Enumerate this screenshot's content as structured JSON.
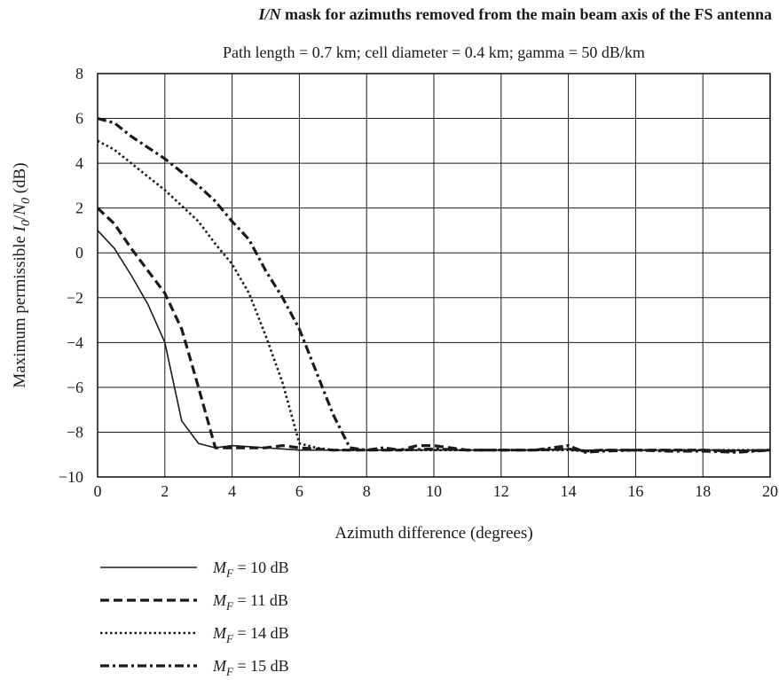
{
  "chart_data": {
    "type": "line",
    "title_prefix": "I/N",
    "title_rest": " mask for azimuths removed from the main beam axis of the FS antenna",
    "subtitle": "Path length = 0.7 km; cell diameter = 0.4 km; gamma = 50 dB/km",
    "xlabel": "Azimuth difference (degrees)",
    "ylabel": "Maximum permissible I0/N0 (dB)",
    "xlim": [
      0,
      20
    ],
    "ylim": [
      -10,
      8
    ],
    "xticks": [
      "0",
      "2",
      "4",
      "6",
      "8",
      "10",
      "12",
      "14",
      "16",
      "18",
      "20"
    ],
    "yticks": [
      "8",
      "6",
      "4",
      "2",
      "0",
      "−2",
      "−4",
      "−6",
      "−8",
      "−10"
    ],
    "grid": true,
    "legend_position": "bottom-left, below chart",
    "series": [
      {
        "name": "MF = 10 dB",
        "legend_label": "= 10 dB",
        "line_style": "solid",
        "x": [
          0,
          0.5,
          1,
          1.5,
          2,
          2.5,
          3,
          3.5,
          4,
          5,
          6,
          7,
          8,
          9,
          10,
          11,
          12,
          13,
          14,
          14.5,
          15,
          16,
          17,
          18,
          19,
          20
        ],
        "y": [
          1,
          0.2,
          -1.0,
          -2.3,
          -4.0,
          -7.5,
          -8.5,
          -8.7,
          -8.6,
          -8.7,
          -8.8,
          -8.8,
          -8.8,
          -8.8,
          -8.8,
          -8.8,
          -8.8,
          -8.8,
          -8.75,
          -8.8,
          -8.8,
          -8.8,
          -8.8,
          -8.8,
          -8.8,
          -8.8
        ]
      },
      {
        "name": "MF = 11 dB",
        "legend_label": "= 11 dB",
        "line_style": "dashed",
        "x": [
          0,
          0.5,
          1,
          1.5,
          2,
          2.5,
          3,
          3.5,
          4,
          5,
          5.5,
          6,
          7,
          8,
          9,
          9.5,
          10,
          11,
          12,
          13,
          14,
          14.5,
          15,
          16,
          17,
          18,
          19,
          20
        ],
        "y": [
          2,
          1.3,
          0.2,
          -0.8,
          -1.8,
          -3.4,
          -6.0,
          -8.7,
          -8.7,
          -8.7,
          -8.6,
          -8.7,
          -8.8,
          -8.8,
          -8.8,
          -8.6,
          -8.6,
          -8.8,
          -8.8,
          -8.8,
          -8.75,
          -8.85,
          -8.8,
          -8.8,
          -8.8,
          -8.8,
          -8.85,
          -8.8
        ]
      },
      {
        "name": "MF = 14 dB",
        "legend_label": "= 14 dB",
        "line_style": "dotted",
        "x": [
          0,
          0.5,
          1,
          1.5,
          2,
          2.5,
          3,
          3.5,
          4,
          4.5,
          5,
          5.5,
          6,
          6.5,
          7,
          7.5,
          8,
          9,
          10,
          11,
          12,
          13,
          14,
          14.5,
          15,
          16,
          17,
          18,
          19,
          20
        ],
        "y": [
          5,
          4.6,
          4.0,
          3.4,
          2.8,
          2.1,
          1.4,
          0.4,
          -0.5,
          -1.8,
          -3.7,
          -5.8,
          -8.5,
          -8.7,
          -8.8,
          -8.8,
          -8.8,
          -8.8,
          -8.8,
          -8.8,
          -8.8,
          -8.8,
          -8.8,
          -8.85,
          -8.8,
          -8.8,
          -8.8,
          -8.8,
          -8.8,
          -8.8
        ]
      },
      {
        "name": "MF = 15 dB",
        "legend_label": "= 15 dB",
        "line_style": "dash-dot",
        "x": [
          0,
          0.5,
          1,
          1.5,
          2,
          2.5,
          3,
          3.5,
          4,
          4.5,
          5,
          5.5,
          6,
          6.5,
          7,
          7.5,
          8,
          8.5,
          9,
          10,
          11,
          12,
          13,
          13.5,
          14,
          14.5,
          15,
          16,
          17,
          18,
          19,
          20
        ],
        "y": [
          6,
          5.8,
          5.2,
          4.7,
          4.2,
          3.6,
          3.0,
          2.3,
          1.4,
          0.6,
          -0.8,
          -2.0,
          -3.4,
          -5.3,
          -7.2,
          -8.7,
          -8.8,
          -8.7,
          -8.8,
          -8.75,
          -8.8,
          -8.8,
          -8.8,
          -8.7,
          -8.6,
          -8.9,
          -8.85,
          -8.8,
          -8.85,
          -8.85,
          -8.9,
          -8.8
        ]
      }
    ]
  }
}
